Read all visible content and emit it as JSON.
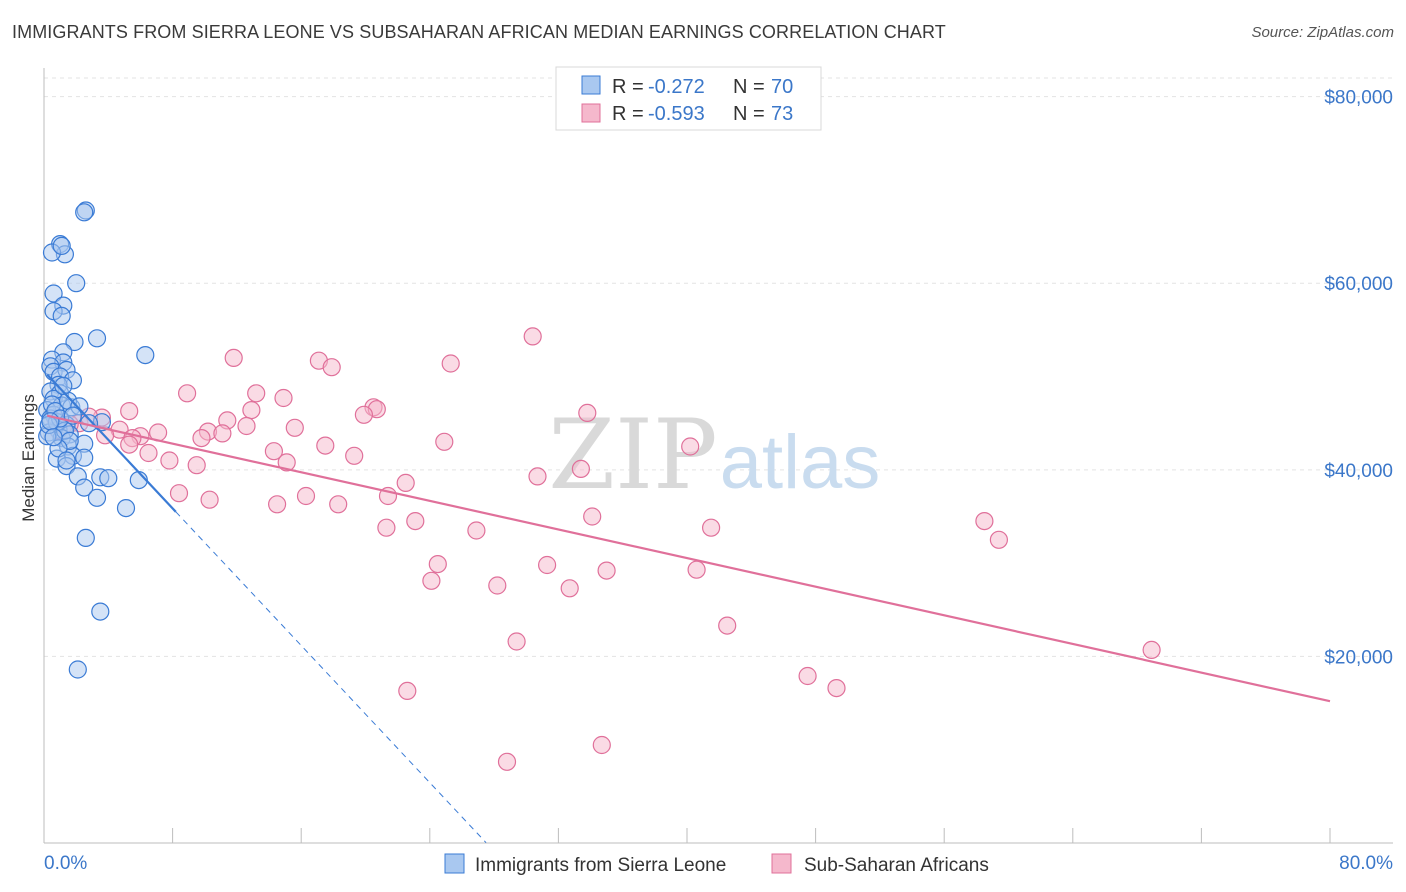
{
  "title": "IMMIGRANTS FROM SIERRA LEONE VS SUBSAHARAN AFRICAN MEDIAN EARNINGS CORRELATION CHART",
  "source": "Source: ZipAtlas.com",
  "watermark": {
    "zip": "ZIP",
    "atlas": "atlas"
  },
  "colors": {
    "blue": "#3a7bd5",
    "blue_fill": "#a9c8f0",
    "pink": "#e0709a",
    "pink_fill": "#f5b8cc",
    "axis_text": "#3b77c9"
  },
  "legend": {
    "r_label": "R =",
    "n_label": "N =",
    "items": [
      {
        "r": "-0.272",
        "n": "70",
        "color": "blue"
      },
      {
        "r": "-0.593",
        "n": "73",
        "color": "pink"
      }
    ]
  },
  "chart_data": {
    "type": "scatter",
    "xlabel": "",
    "ylabel": "Median Earnings",
    "xlim": [
      0,
      80
    ],
    "ylim": [
      0,
      82000
    ],
    "x_tick_labels": {
      "min": "0.0%",
      "max": "80.0%"
    },
    "y_ticks": [
      20000,
      40000,
      60000,
      80000
    ],
    "y_tick_labels": [
      "$20,000",
      "$40,000",
      "$60,000",
      "$80,000"
    ],
    "grid": true,
    "legend_placement": "bottom",
    "series": [
      {
        "name": "Immigrants from Sierra Leone",
        "color": "blue",
        "trend": {
          "x0": 0.2,
          "y0": 50200,
          "x1": 8.2,
          "y1": 35500,
          "dash_to_x": 27.5
        },
        "points": [
          [
            2.6,
            67800
          ],
          [
            2.5,
            67600
          ],
          [
            1.0,
            64200
          ],
          [
            1.3,
            63100
          ],
          [
            0.5,
            63300
          ],
          [
            1.1,
            64000
          ],
          [
            2.0,
            60000
          ],
          [
            0.6,
            58900
          ],
          [
            1.2,
            57600
          ],
          [
            0.6,
            57000
          ],
          [
            1.1,
            56500
          ],
          [
            3.3,
            54100
          ],
          [
            1.9,
            53700
          ],
          [
            1.2,
            52600
          ],
          [
            6.3,
            52300
          ],
          [
            0.5,
            51800
          ],
          [
            1.2,
            51500
          ],
          [
            0.4,
            51100
          ],
          [
            0.6,
            50500
          ],
          [
            1.4,
            50700
          ],
          [
            1.0,
            50000
          ],
          [
            1.8,
            49600
          ],
          [
            0.9,
            49100
          ],
          [
            0.4,
            48400
          ],
          [
            1.0,
            48200
          ],
          [
            0.6,
            47600
          ],
          [
            1.1,
            46900
          ],
          [
            1.7,
            46700
          ],
          [
            0.2,
            46400
          ],
          [
            0.6,
            45900
          ],
          [
            0.4,
            45500
          ],
          [
            3.6,
            45100
          ],
          [
            1.4,
            44800
          ],
          [
            0.9,
            44300
          ],
          [
            0.3,
            44000
          ],
          [
            1.6,
            43800
          ],
          [
            1.1,
            43400
          ],
          [
            2.5,
            42800
          ],
          [
            1.5,
            42500
          ],
          [
            1.8,
            41500
          ],
          [
            0.8,
            41200
          ],
          [
            2.5,
            41300
          ],
          [
            1.4,
            40400
          ],
          [
            3.5,
            39200
          ],
          [
            4.0,
            39100
          ],
          [
            5.9,
            38900
          ],
          [
            2.1,
            39300
          ],
          [
            2.5,
            38100
          ],
          [
            3.3,
            37000
          ],
          [
            5.1,
            35900
          ],
          [
            2.6,
            32700
          ],
          [
            3.5,
            24800
          ],
          [
            2.1,
            18600
          ],
          [
            0.5,
            47000
          ],
          [
            0.8,
            45100
          ],
          [
            1.3,
            44200
          ],
          [
            0.2,
            43600
          ],
          [
            0.7,
            46300
          ],
          [
            1.5,
            47400
          ],
          [
            1.0,
            45500
          ],
          [
            0.3,
            44800
          ],
          [
            1.6,
            43100
          ],
          [
            0.9,
            42300
          ],
          [
            2.2,
            46800
          ],
          [
            1.2,
            49000
          ],
          [
            0.4,
            45200
          ],
          [
            1.8,
            45800
          ],
          [
            0.6,
            43500
          ],
          [
            1.4,
            41000
          ],
          [
            2.8,
            45000
          ]
        ]
      },
      {
        "name": "Sub-Saharan Africans",
        "color": "pink",
        "trend": {
          "x0": 0.2,
          "y0": 45800,
          "x1": 80,
          "y1": 15200
        },
        "points": [
          [
            30.4,
            54300
          ],
          [
            11.8,
            52000
          ],
          [
            17.1,
            51700
          ],
          [
            25.3,
            51400
          ],
          [
            17.9,
            51000
          ],
          [
            13.2,
            48200
          ],
          [
            8.9,
            48200
          ],
          [
            14.9,
            47700
          ],
          [
            20.5,
            46700
          ],
          [
            20.7,
            46500
          ],
          [
            12.9,
            46400
          ],
          [
            19.9,
            45900
          ],
          [
            33.8,
            46100
          ],
          [
            5.3,
            46300
          ],
          [
            3.6,
            45600
          ],
          [
            11.4,
            45300
          ],
          [
            2.2,
            45000
          ],
          [
            1.6,
            44900
          ],
          [
            12.6,
            44700
          ],
          [
            15.6,
            44500
          ],
          [
            4.7,
            44300
          ],
          [
            10.2,
            44100
          ],
          [
            7.1,
            44000
          ],
          [
            11.1,
            43900
          ],
          [
            3.8,
            43700
          ],
          [
            6.0,
            43600
          ],
          [
            9.8,
            43400
          ],
          [
            5.5,
            43400
          ],
          [
            0.7,
            45500
          ],
          [
            1.2,
            44700
          ],
          [
            24.9,
            43000
          ],
          [
            17.5,
            42600
          ],
          [
            5.3,
            42700
          ],
          [
            40.2,
            42500
          ],
          [
            14.3,
            42000
          ],
          [
            6.5,
            41800
          ],
          [
            19.3,
            41500
          ],
          [
            7.8,
            41000
          ],
          [
            15.1,
            40800
          ],
          [
            9.5,
            40500
          ],
          [
            33.4,
            40100
          ],
          [
            30.7,
            39300
          ],
          [
            22.5,
            38600
          ],
          [
            8.4,
            37500
          ],
          [
            16.3,
            37200
          ],
          [
            21.4,
            37200
          ],
          [
            10.3,
            36800
          ],
          [
            14.5,
            36300
          ],
          [
            18.3,
            36300
          ],
          [
            34.1,
            35000
          ],
          [
            23.1,
            34500
          ],
          [
            21.3,
            33800
          ],
          [
            26.9,
            33500
          ],
          [
            41.5,
            33800
          ],
          [
            58.5,
            34500
          ],
          [
            59.4,
            32500
          ],
          [
            24.5,
            29900
          ],
          [
            31.3,
            29800
          ],
          [
            35.0,
            29200
          ],
          [
            40.6,
            29300
          ],
          [
            24.1,
            28100
          ],
          [
            28.2,
            27600
          ],
          [
            32.7,
            27300
          ],
          [
            42.5,
            23300
          ],
          [
            29.4,
            21600
          ],
          [
            68.9,
            20700
          ],
          [
            47.5,
            17900
          ],
          [
            49.3,
            16600
          ],
          [
            22.6,
            16300
          ],
          [
            34.7,
            10500
          ],
          [
            28.8,
            8700
          ],
          [
            2.8,
            45700
          ],
          [
            0.9,
            44200
          ]
        ]
      }
    ]
  }
}
